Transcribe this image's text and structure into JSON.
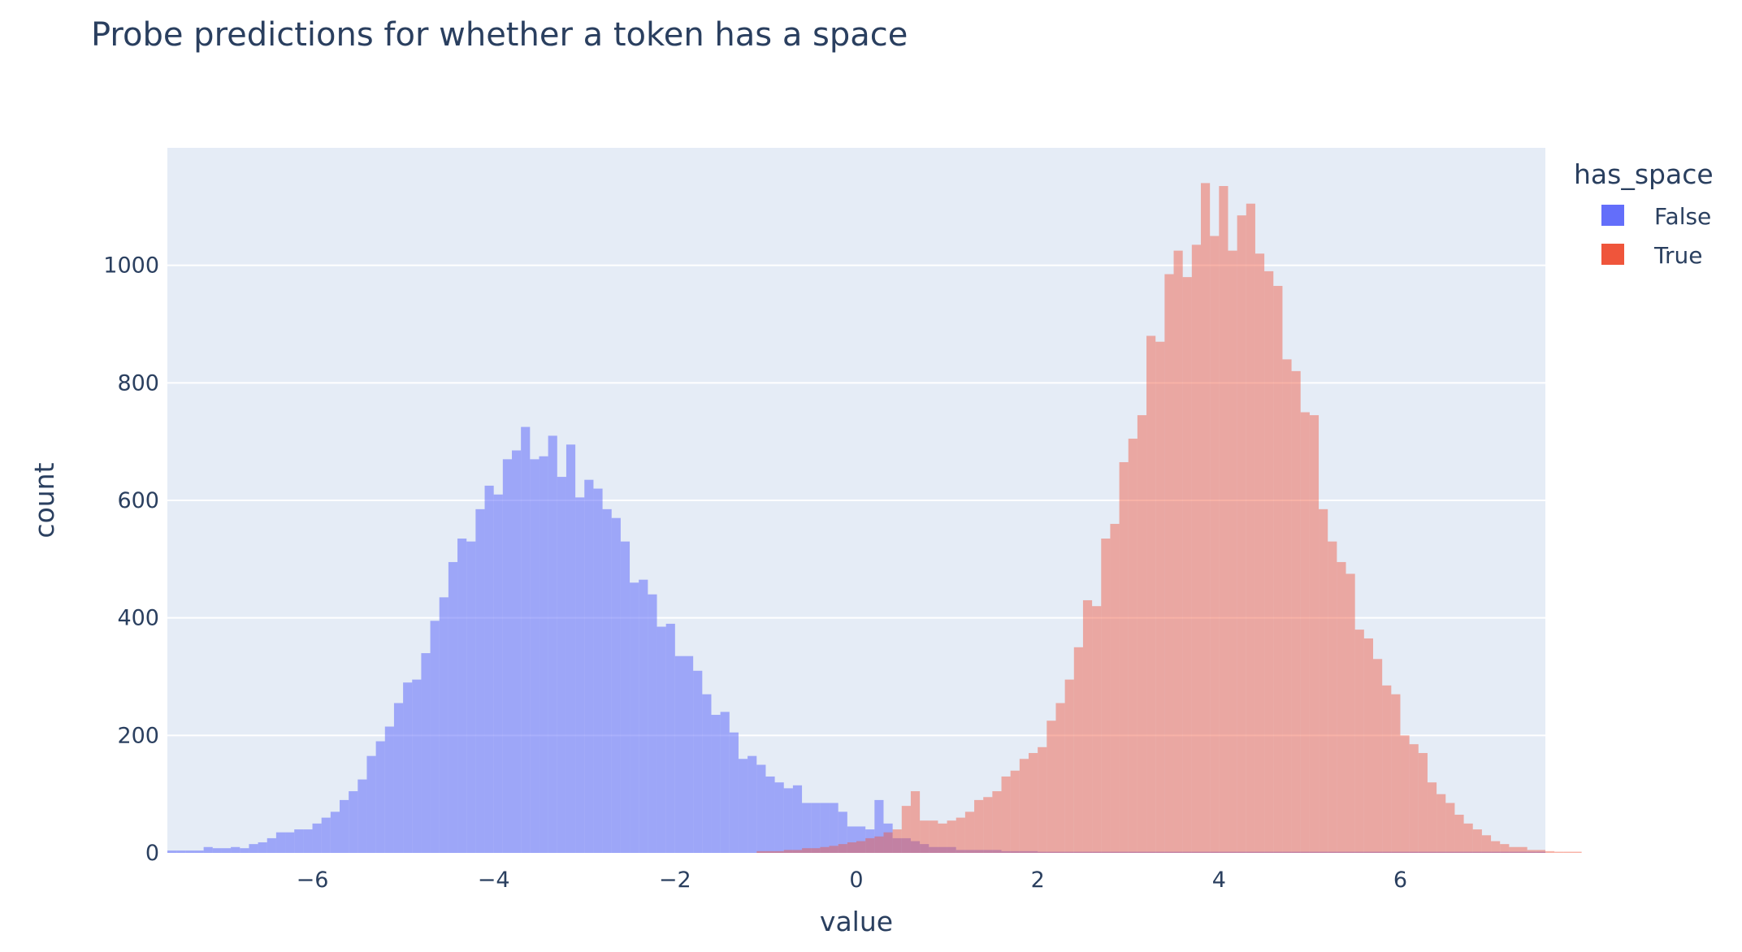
{
  "chart_data": {
    "type": "bar",
    "subtype": "overlaid-histogram",
    "title": "Probe predictions for whether a token has a space",
    "xlabel": "value",
    "ylabel": "count",
    "xlim": [
      -7.6,
      7.6
    ],
    "ylim": [
      0,
      1200
    ],
    "x_ticks": [
      -6,
      -4,
      -2,
      0,
      2,
      4,
      6
    ],
    "x_tick_labels": [
      "−6",
      "−4",
      "−2",
      "0",
      "2",
      "4",
      "6"
    ],
    "y_ticks": [
      0,
      200,
      400,
      600,
      800,
      1000
    ],
    "y_tick_labels": [
      "0",
      "200",
      "400",
      "600",
      "800",
      "1000"
    ],
    "grid": true,
    "bin_start": -7.6,
    "bin_width": 0.1,
    "legend": {
      "title": "has_space",
      "position": "right"
    },
    "colors": {
      "plot_bg": "#e5ecf6",
      "grid": "#ffffff",
      "text": "#2a3f5f"
    },
    "series": [
      {
        "name": "False",
        "color": "#636efa",
        "opacity": 0.55,
        "values": [
          4,
          4,
          4,
          4,
          10,
          8,
          8,
          10,
          8,
          15,
          18,
          25,
          35,
          35,
          40,
          40,
          50,
          60,
          70,
          90,
          105,
          125,
          165,
          190,
          215,
          255,
          290,
          295,
          340,
          395,
          435,
          495,
          535,
          530,
          585,
          625,
          610,
          670,
          685,
          725,
          670,
          675,
          710,
          640,
          695,
          605,
          635,
          620,
          585,
          570,
          530,
          460,
          465,
          440,
          385,
          390,
          335,
          335,
          310,
          270,
          235,
          240,
          205,
          160,
          165,
          150,
          130,
          120,
          110,
          115,
          85,
          85,
          85,
          85,
          70,
          45,
          45,
          40,
          90,
          50,
          25,
          25,
          20,
          15,
          10,
          10,
          10,
          5,
          5,
          5,
          5,
          5,
          3,
          3,
          3,
          3,
          2,
          2,
          2,
          2,
          2,
          2,
          2,
          2,
          2,
          2,
          2,
          2,
          2,
          2,
          2,
          2,
          2,
          2,
          2,
          2,
          2,
          2,
          2,
          2,
          2,
          2,
          2,
          2,
          2,
          2,
          2,
          2,
          2,
          2,
          2,
          2,
          2,
          2,
          2,
          2,
          2,
          2,
          2,
          2,
          2,
          2,
          2,
          2,
          2,
          2,
          2,
          2,
          2,
          2,
          2,
          2
        ]
      },
      {
        "name": "True",
        "color": "#ef553b",
        "opacity": 0.45,
        "values": [
          0,
          0,
          0,
          0,
          0,
          0,
          0,
          0,
          0,
          0,
          0,
          0,
          0,
          0,
          0,
          0,
          0,
          0,
          0,
          0,
          0,
          0,
          0,
          0,
          0,
          0,
          0,
          0,
          0,
          0,
          0,
          0,
          0,
          0,
          0,
          0,
          0,
          0,
          0,
          0,
          0,
          0,
          0,
          0,
          0,
          0,
          0,
          0,
          0,
          0,
          0,
          0,
          0,
          0,
          0,
          0,
          0,
          0,
          0,
          0,
          0,
          0,
          0,
          0,
          0,
          3,
          3,
          3,
          5,
          5,
          8,
          8,
          10,
          12,
          15,
          18,
          20,
          25,
          28,
          35,
          40,
          80,
          105,
          55,
          55,
          50,
          55,
          60,
          70,
          90,
          95,
          105,
          130,
          140,
          160,
          170,
          180,
          225,
          255,
          295,
          350,
          430,
          420,
          535,
          560,
          665,
          705,
          745,
          880,
          870,
          985,
          1025,
          980,
          1035,
          1140,
          1050,
          1135,
          1025,
          1085,
          1105,
          1020,
          990,
          965,
          840,
          820,
          750,
          745,
          585,
          530,
          495,
          475,
          380,
          365,
          330,
          285,
          270,
          200,
          185,
          170,
          120,
          100,
          85,
          65,
          50,
          40,
          30,
          20,
          15,
          10,
          10,
          5,
          5,
          3,
          2,
          2,
          2
        ]
      }
    ]
  }
}
